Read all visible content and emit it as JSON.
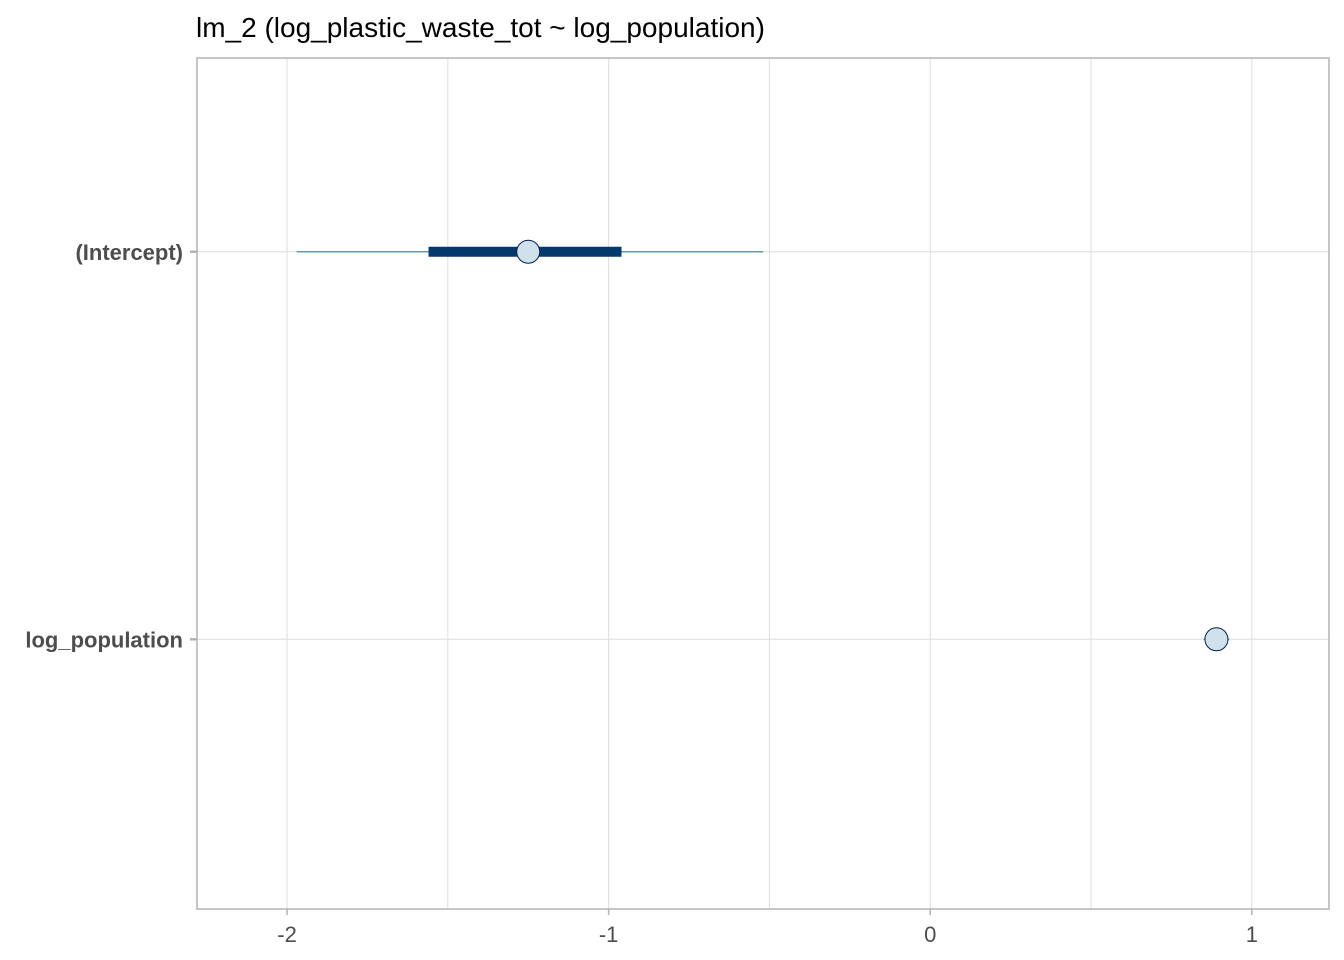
{
  "chart_data": {
    "type": "interval",
    "title": "lm_2 (log_plastic_waste_tot ~ log_population)",
    "xlabel": "",
    "ylabel": "",
    "xlim": [
      -2.28,
      1.24
    ],
    "x_ticks": [
      -2,
      -1,
      0,
      1
    ],
    "x_minor_ticks": [
      -1.5,
      -0.5,
      0.5
    ],
    "x_tick_labels": [
      "-2",
      "-1",
      "0",
      "1"
    ],
    "grid": true,
    "legend": "none",
    "parameters": [
      {
        "name": "(Intercept)",
        "estimate": -1.25,
        "inner": [
          -1.56,
          -0.96
        ],
        "outer": [
          -1.97,
          -0.52
        ]
      },
      {
        "name": "log_population",
        "estimate": 0.89,
        "inner": [
          0.87,
          0.91
        ],
        "outer": [
          0.85,
          0.93
        ]
      }
    ],
    "colors": {
      "point_fill": "#d1e1ec",
      "point_stroke": "#011f4b",
      "inner_interval": "#03396c",
      "outer_interval": "#6497b1",
      "grid": "#dedede",
      "panel_border": "#b3b3b3",
      "axis_text": "#4d4d4d"
    }
  }
}
